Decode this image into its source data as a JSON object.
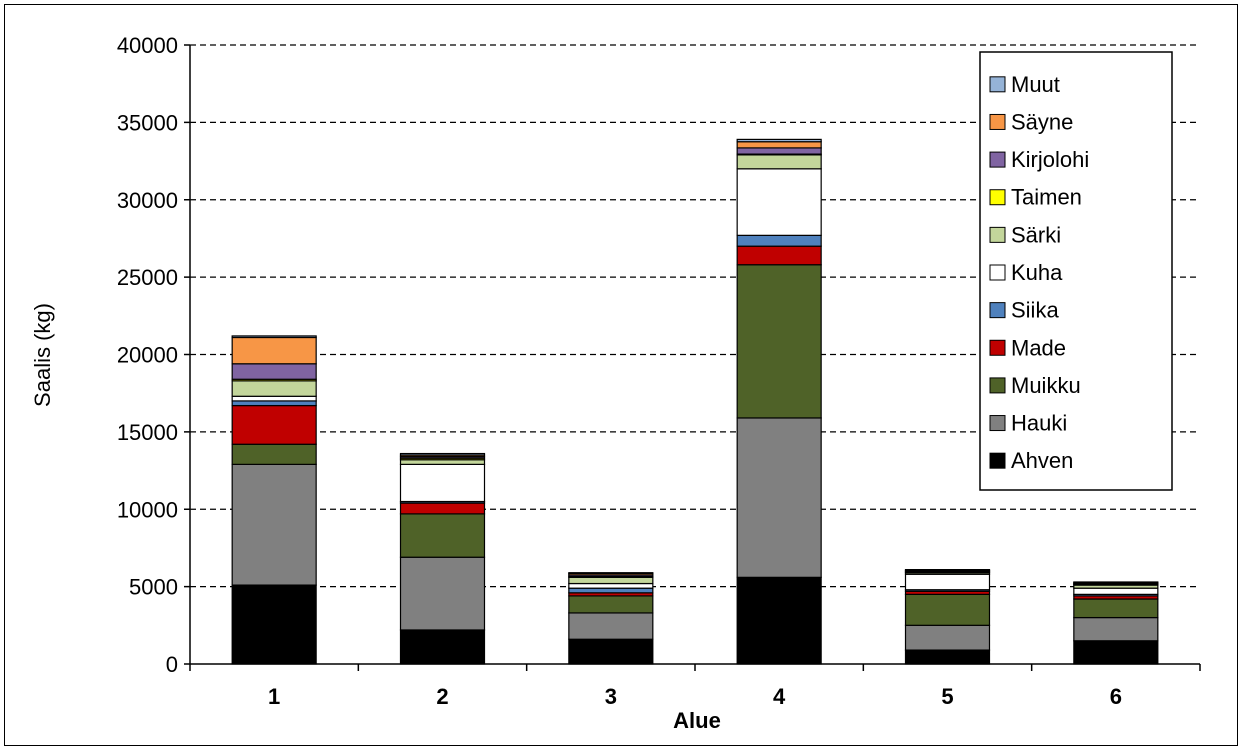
{
  "chart_data": {
    "type": "bar",
    "stacked": true,
    "title": "",
    "xlabel": "Alue",
    "ylabel": "Saalis (kg)",
    "ylim": [
      0,
      40000
    ],
    "yticks": [
      0,
      5000,
      10000,
      15000,
      20000,
      25000,
      30000,
      35000,
      40000
    ],
    "grid": true,
    "legend_position": "top-right",
    "categories": [
      "1",
      "2",
      "3",
      "4",
      "5",
      "6"
    ],
    "series": [
      {
        "name": "Ahven",
        "color": "#000000",
        "values": [
          5100,
          2200,
          1600,
          5600,
          900,
          1500
        ]
      },
      {
        "name": "Hauki",
        "color": "#808080",
        "values": [
          7800,
          4700,
          1700,
          10300,
          1600,
          1500
        ]
      },
      {
        "name": "Muikku",
        "color": "#4F6228",
        "values": [
          1300,
          2800,
          1100,
          9900,
          2000,
          1200
        ]
      },
      {
        "name": "Made",
        "color": "#C00000",
        "values": [
          2500,
          700,
          200,
          1200,
          200,
          200
        ]
      },
      {
        "name": "Siika",
        "color": "#4F81BD",
        "values": [
          300,
          100,
          300,
          700,
          100,
          100
        ]
      },
      {
        "name": "Kuha",
        "color": "#FFFFFF",
        "values": [
          300,
          2400,
          300,
          4300,
          1000,
          400
        ]
      },
      {
        "name": "Särki",
        "color": "#C3D69B",
        "values": [
          1000,
          300,
          400,
          900,
          100,
          200
        ]
      },
      {
        "name": "Taimen",
        "color": "#FFFF00",
        "values": [
          100,
          100,
          50,
          50,
          50,
          50
        ]
      },
      {
        "name": "Kirjolohi",
        "color": "#8064A2",
        "values": [
          1000,
          100,
          100,
          400,
          50,
          50
        ]
      },
      {
        "name": "Säyne",
        "color": "#F79646",
        "values": [
          1700,
          100,
          100,
          400,
          50,
          50
        ]
      },
      {
        "name": "Muut",
        "color": "#95B3D7",
        "values": [
          100,
          100,
          50,
          150,
          50,
          50
        ]
      }
    ]
  }
}
